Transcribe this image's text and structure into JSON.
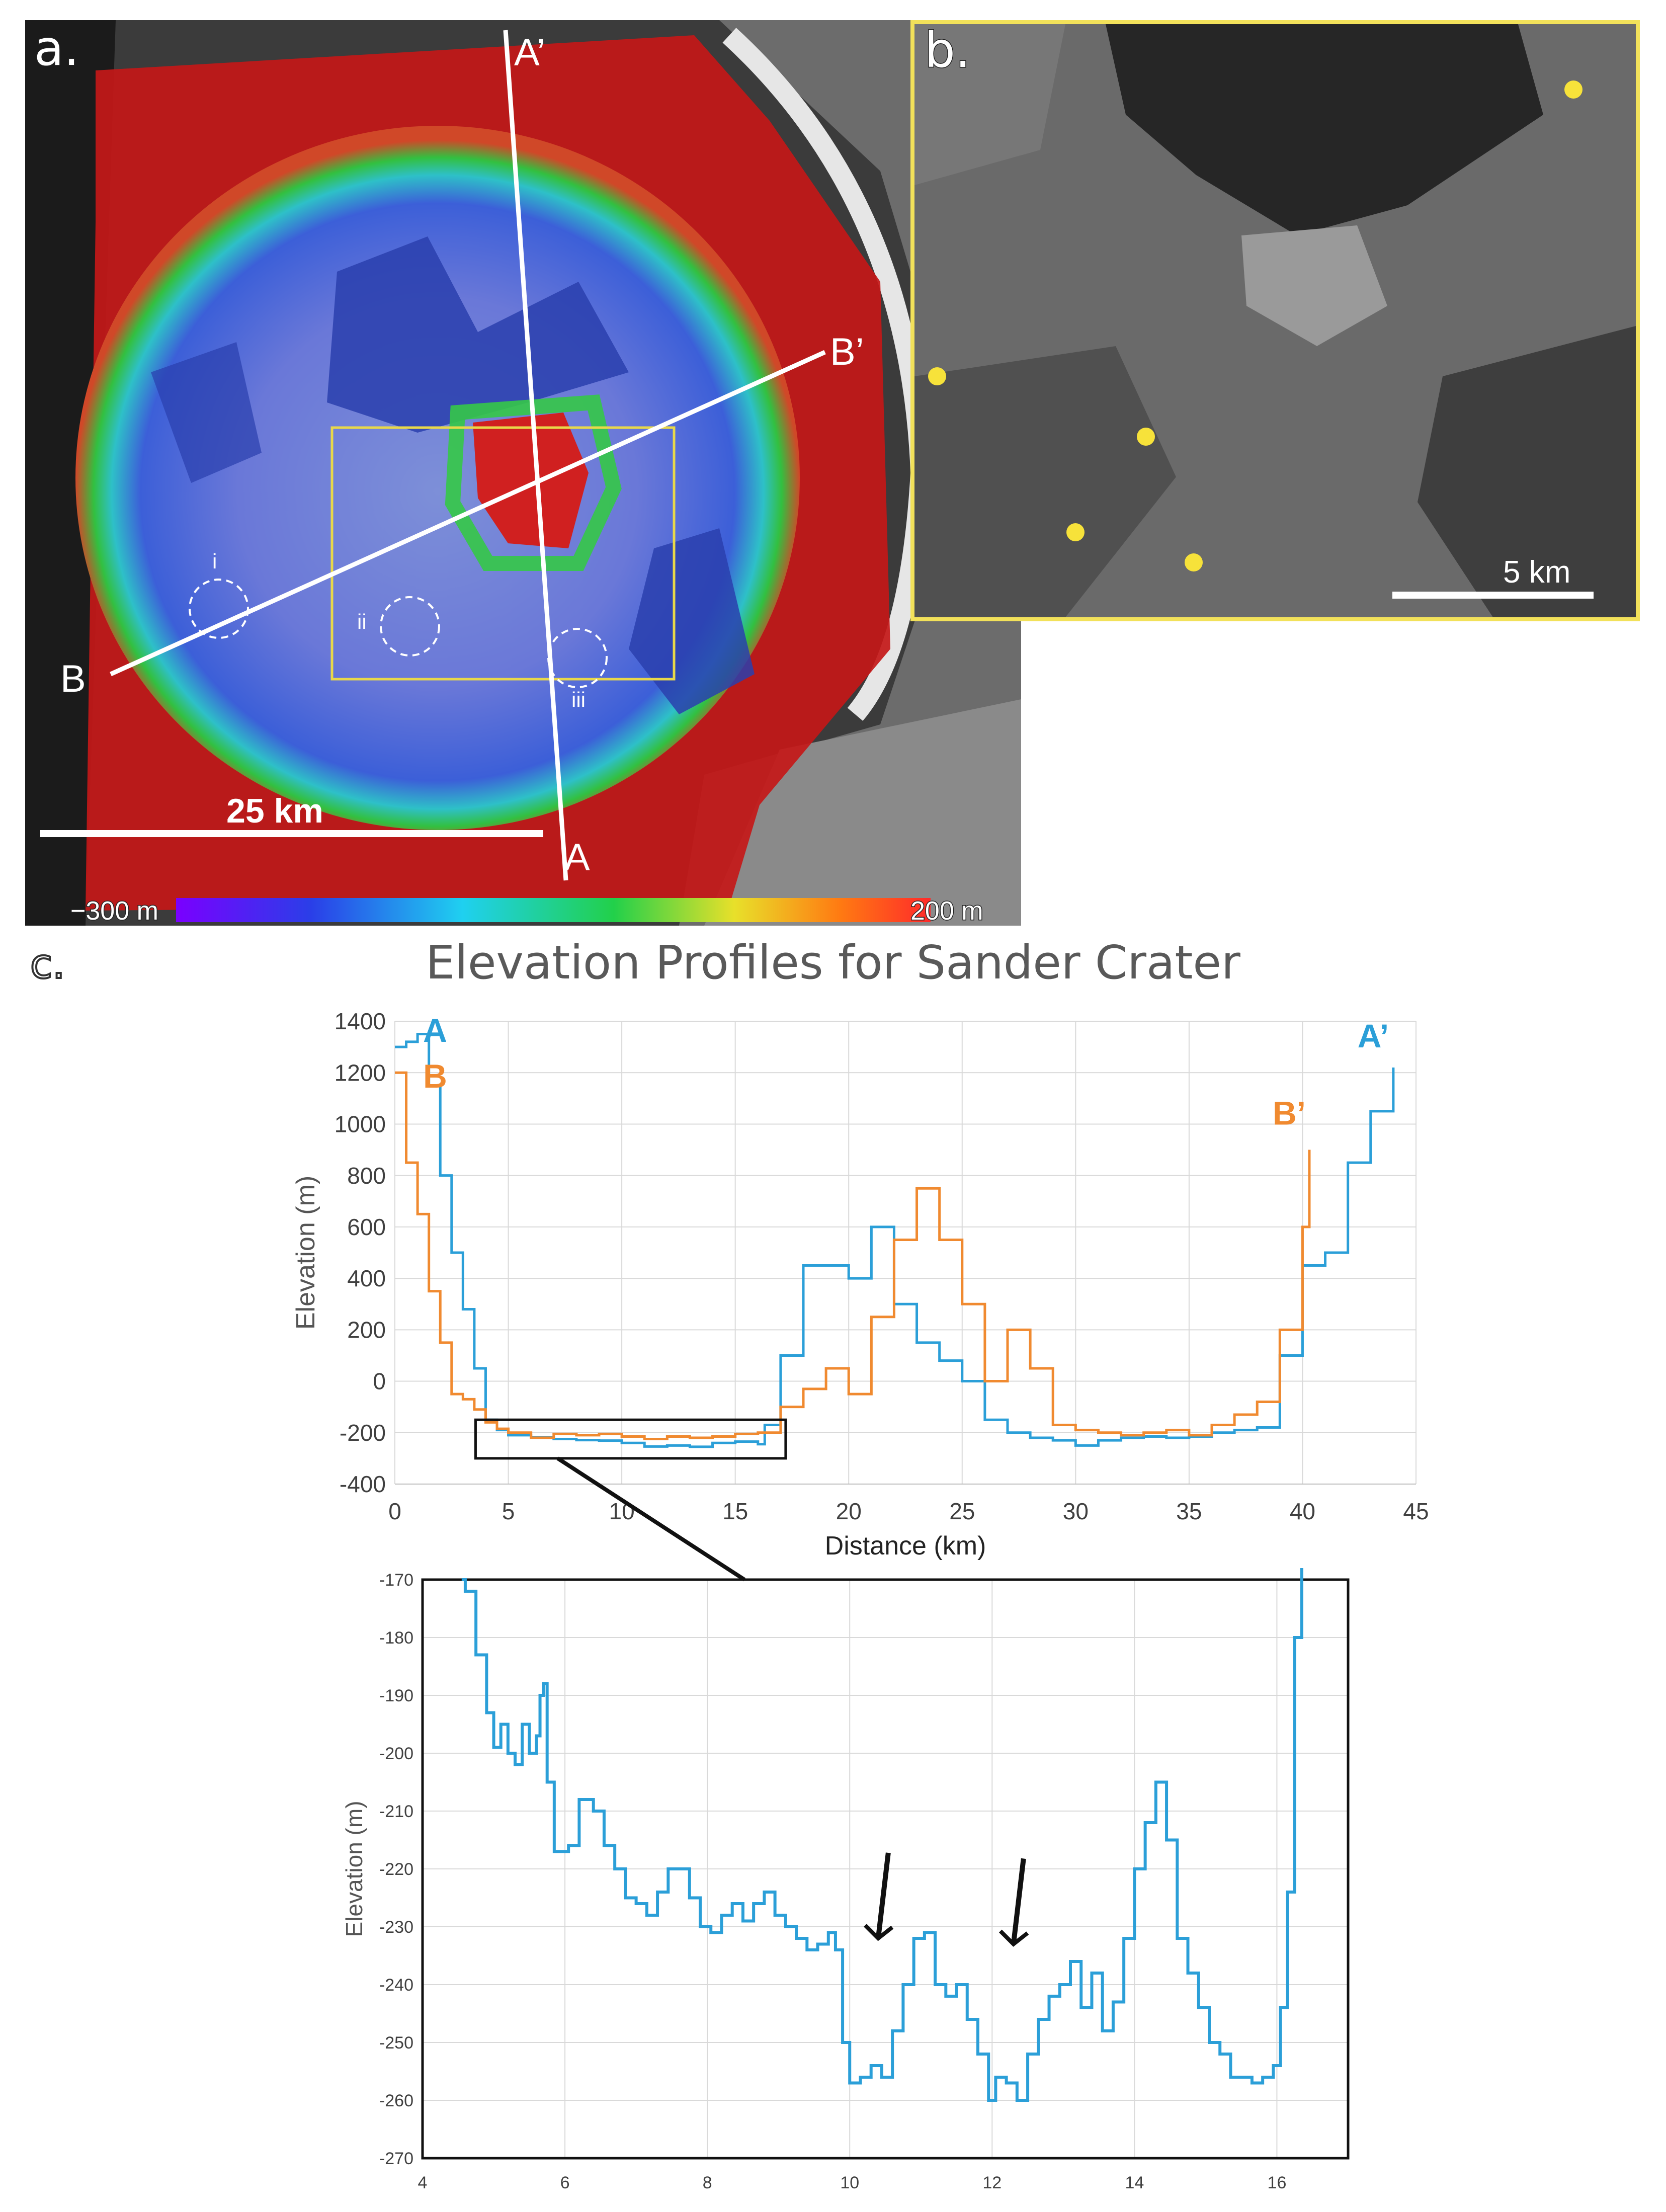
{
  "panel_a": {
    "letter": "a.",
    "scale_bar_label": "25 km",
    "colorbar_min_label": "−300 m",
    "colorbar_max_label": "200 m",
    "colorbar_colors": [
      "#7a00ff",
      "#2a3fe8",
      "#1fd0f0",
      "#22d04a",
      "#e8e02a",
      "#ff7a12",
      "#ff2a2a"
    ],
    "profile_labels": {
      "a": "A",
      "a_prime": "A’",
      "b": "B",
      "b_prime": "B’"
    },
    "region_labels": [
      "i",
      "ii",
      "iii"
    ],
    "inset_box_color": "#e8d84a"
  },
  "panel_b": {
    "letter": "b.",
    "scale_bar_label": "5 km",
    "marker_color": "#f7e23a"
  },
  "panel_c": {
    "letter": "c."
  },
  "chart_data": [
    {
      "type": "line",
      "title": "Elevation Profiles for Sander Crater",
      "xlabel": "Distance (km)",
      "ylabel": "Elevation (m)",
      "xlim": [
        0,
        45
      ],
      "ylim": [
        -400,
        1400
      ],
      "xticks": [
        0,
        5,
        10,
        15,
        20,
        25,
        30,
        35,
        40,
        45
      ],
      "yticks": [
        -400,
        -200,
        0,
        200,
        400,
        600,
        800,
        1000,
        1200,
        1400
      ],
      "grid": true,
      "series": [
        {
          "name": "A",
          "end_label": "A’",
          "color": "#2b9fd8",
          "x": [
            0,
            0.5,
            1,
            1.5,
            2,
            2.5,
            3,
            3.5,
            4,
            4.5,
            5,
            6,
            7,
            8,
            9,
            10,
            11,
            12,
            13,
            14,
            15,
            16,
            16.3,
            17,
            18,
            19,
            20,
            21,
            22,
            23,
            24,
            25,
            26,
            27,
            28,
            29,
            30,
            31,
            32,
            33,
            34,
            35,
            36,
            37,
            38,
            39,
            40,
            41,
            42,
            43,
            44
          ],
          "y": [
            1300,
            1320,
            1350,
            1150,
            800,
            500,
            280,
            50,
            -150,
            -190,
            -210,
            -217,
            -225,
            -229,
            -231,
            -240,
            -254,
            -250,
            -255,
            -240,
            -235,
            -245,
            -170,
            100,
            450,
            450,
            400,
            600,
            300,
            150,
            80,
            0,
            -150,
            -200,
            -220,
            -230,
            -250,
            -230,
            -220,
            -215,
            -220,
            -215,
            -200,
            -190,
            -180,
            100,
            450,
            500,
            850,
            1050,
            1220
          ]
        },
        {
          "name": "B",
          "end_label": "B’",
          "color": "#f08a30",
          "x": [
            0,
            0.5,
            1,
            1.5,
            2,
            2.5,
            3,
            3.5,
            4,
            4.5,
            5,
            6,
            7,
            8,
            9,
            10,
            11,
            12,
            13,
            14,
            15,
            16,
            17,
            18,
            19,
            20,
            21,
            22,
            23,
            24,
            25,
            26,
            27,
            28,
            29,
            30,
            31,
            32,
            33,
            34,
            35,
            36,
            37,
            38,
            39,
            40,
            40.3
          ],
          "y": [
            1200,
            850,
            650,
            350,
            150,
            -50,
            -70,
            -110,
            -160,
            -185,
            -200,
            -220,
            -205,
            -210,
            -205,
            -215,
            -225,
            -215,
            -220,
            -215,
            -205,
            -200,
            -100,
            -30,
            50,
            -50,
            250,
            550,
            750,
            550,
            300,
            0,
            200,
            50,
            -170,
            -190,
            -200,
            -210,
            -200,
            -190,
            -210,
            -170,
            -130,
            -80,
            200,
            600,
            900
          ]
        }
      ]
    },
    {
      "type": "line",
      "xlabel": "",
      "ylabel": "Elevation (m)",
      "xlim": [
        4,
        17
      ],
      "ylim": [
        -270,
        -170
      ],
      "xticks": [
        4,
        6,
        8,
        10,
        12,
        14,
        16
      ],
      "yticks": [
        -270,
        -260,
        -250,
        -240,
        -230,
        -220,
        -210,
        -200,
        -190,
        -180,
        -170
      ],
      "grid": true,
      "annotations": [
        {
          "type": "arrow",
          "x": 10.4,
          "y": -232
        },
        {
          "type": "arrow",
          "x": 12.3,
          "y": -233
        }
      ],
      "series": [
        {
          "name": "",
          "color": "#2b9fd8",
          "x": [
            4.55,
            4.6,
            4.75,
            4.9,
            5.0,
            5.1,
            5.2,
            5.3,
            5.4,
            5.5,
            5.6,
            5.65,
            5.7,
            5.75,
            5.85,
            5.95,
            6.05,
            6.2,
            6.4,
            6.55,
            6.7,
            6.85,
            7.0,
            7.15,
            7.3,
            7.45,
            7.6,
            7.75,
            7.9,
            8.05,
            8.2,
            8.35,
            8.5,
            8.65,
            8.8,
            8.95,
            9.1,
            9.25,
            9.4,
            9.55,
            9.7,
            9.8,
            9.9,
            10.0,
            10.15,
            10.3,
            10.45,
            10.6,
            10.75,
            10.9,
            11.05,
            11.2,
            11.35,
            11.5,
            11.65,
            11.8,
            11.95,
            12.05,
            12.2,
            12.35,
            12.5,
            12.65,
            12.8,
            12.95,
            13.1,
            13.25,
            13.4,
            13.55,
            13.7,
            13.85,
            14.0,
            14.15,
            14.3,
            14.45,
            14.6,
            14.75,
            14.9,
            15.05,
            15.2,
            15.35,
            15.5,
            15.65,
            15.8,
            15.95,
            16.05,
            16.15,
            16.25,
            16.35
          ],
          "y": [
            -170,
            -172,
            -183,
            -193,
            -199,
            -195,
            -200,
            -202,
            -195,
            -200,
            -197,
            -190,
            -188,
            -205,
            -217,
            -217,
            -216,
            -208,
            -210,
            -216,
            -220,
            -225,
            -226,
            -228,
            -224,
            -220,
            -220,
            -225,
            -230,
            -231,
            -228,
            -226,
            -229,
            -226,
            -224,
            -228,
            -230,
            -232,
            -234,
            -233,
            -231,
            -234,
            -250,
            -257,
            -256,
            -254,
            -256,
            -248,
            -240,
            -232,
            -231,
            -240,
            -242,
            -240,
            -246,
            -252,
            -260,
            -256,
            -257,
            -260,
            -252,
            -246,
            -242,
            -240,
            -236,
            -244,
            -238,
            -248,
            -243,
            -232,
            -220,
            -212,
            -205,
            -215,
            -232,
            -238,
            -244,
            -250,
            -252,
            -256,
            -256,
            -257,
            -256,
            -254,
            -244,
            -224,
            -180,
            -168
          ]
        }
      ]
    }
  ]
}
